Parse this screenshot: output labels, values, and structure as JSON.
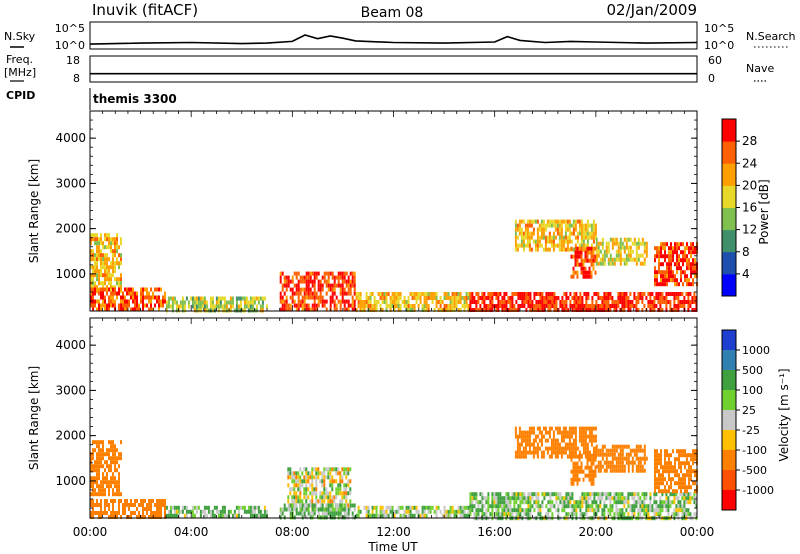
{
  "header": {
    "station": "Inuvik (fitACF)",
    "beam": "Beam 08",
    "date": "02/Jan/2009"
  },
  "strips": {
    "nsky_label": "N.Sky",
    "nsky_ticks": [
      "10^5",
      "10^0"
    ],
    "nsearch_label": "N.Search",
    "nsearch_ticks": [
      "10^5",
      "10^0"
    ],
    "freq_label": "Freq.",
    "freq_unit": "[MHz]",
    "freq_ticks": [
      "18",
      "8"
    ],
    "nave_label": "Nave",
    "nave_ticks": [
      "60",
      "0"
    ],
    "cpid_label": "CPID",
    "cpid_value": "themis 3300"
  },
  "axes": {
    "ylabel": "Slant Range [km]",
    "xlabel": "Time UT",
    "x_ticks": [
      "00:00",
      "04:00",
      "08:00",
      "12:00",
      "16:00",
      "20:00",
      "00:00"
    ],
    "y_ticks": [
      "1000",
      "2000",
      "3000",
      "4000"
    ]
  },
  "colorbars": {
    "power": {
      "label": "Power [dB]",
      "ticks": [
        "4",
        "8",
        "12",
        "16",
        "20",
        "24",
        "28"
      ],
      "colors": [
        "#0000ff",
        "#1f4fae",
        "#3f8f6a",
        "#7fc050",
        "#e8d82a",
        "#ffa000",
        "#ff6000",
        "#ff0000"
      ]
    },
    "velocity": {
      "label": "Velocity [m s⁻¹]",
      "ticks": [
        "1000",
        "500",
        "100",
        "25",
        "-25",
        "-100",
        "-500",
        "-1000"
      ],
      "colors": [
        "#1f3fd0",
        "#2f7fb0",
        "#3fa040",
        "#70d030",
        "#c8c8c8",
        "#ffc000",
        "#ff8000",
        "#ff5000",
        "#ff0000"
      ]
    }
  },
  "chart_data": [
    {
      "type": "line",
      "name": "N.Sky",
      "x_hours": [
        0,
        2,
        4,
        6,
        7,
        8,
        8.5,
        9,
        9.5,
        10,
        10.5,
        12,
        14,
        16,
        16.5,
        17,
        18,
        19,
        20,
        22,
        24
      ],
      "log10_values": [
        0.9,
        1.1,
        1.2,
        1.0,
        1.1,
        1.4,
        2.6,
        1.9,
        2.4,
        2.0,
        1.5,
        1.2,
        1.1,
        1.3,
        2.3,
        1.6,
        1.2,
        1.4,
        1.3,
        1.1,
        1.2
      ],
      "ylim": [
        0,
        5
      ]
    },
    {
      "type": "line",
      "name": "Freq.",
      "x_hours": [
        0,
        24
      ],
      "values": [
        11.2,
        11.2
      ],
      "ylim": [
        8,
        18
      ]
    },
    {
      "type": "heatmap",
      "name": "Power",
      "x_range_hours": [
        0,
        24
      ],
      "y_range_km": [
        180,
        4600
      ],
      "unit": "dB",
      "regions": [
        {
          "t0": 0.0,
          "t1": 1.2,
          "r0": 600,
          "r1": 1900,
          "value": 20
        },
        {
          "t0": 0.0,
          "t1": 3.0,
          "r0": 200,
          "r1": 700,
          "value": 26
        },
        {
          "t0": 3.0,
          "t1": 7.0,
          "r0": 200,
          "r1": 500,
          "value": 16
        },
        {
          "t0": 7.5,
          "t1": 10.5,
          "r0": 200,
          "r1": 1050,
          "value": 28
        },
        {
          "t0": 10.5,
          "t1": 15.0,
          "r0": 200,
          "r1": 600,
          "value": 20
        },
        {
          "t0": 15.0,
          "t1": 24.0,
          "r0": 200,
          "r1": 600,
          "value": 29
        },
        {
          "t0": 16.8,
          "t1": 20.0,
          "r0": 1500,
          "r1": 2200,
          "value": 20
        },
        {
          "t0": 19.0,
          "t1": 20.0,
          "r0": 900,
          "r1": 1600,
          "value": 27
        },
        {
          "t0": 20.0,
          "t1": 22.0,
          "r0": 1200,
          "r1": 1800,
          "value": 18
        },
        {
          "t0": 22.3,
          "t1": 24.0,
          "r0": 800,
          "r1": 1700,
          "value": 28
        }
      ]
    },
    {
      "type": "heatmap",
      "name": "Velocity",
      "x_range_hours": [
        0,
        24
      ],
      "y_range_km": [
        180,
        4600
      ],
      "unit": "m/s",
      "regions": [
        {
          "t0": 0.0,
          "t1": 1.2,
          "r0": 700,
          "r1": 1900,
          "value": -200
        },
        {
          "t0": 0.0,
          "t1": 3.0,
          "r0": 200,
          "r1": 600,
          "value": -150
        },
        {
          "t0": 3.0,
          "t1": 7.0,
          "r0": 200,
          "r1": 450,
          "value": 50
        },
        {
          "t0": 7.8,
          "t1": 10.3,
          "r0": 400,
          "r1": 1300,
          "value": 0
        },
        {
          "t0": 7.5,
          "t1": 10.5,
          "r0": 200,
          "r1": 500,
          "value": 60
        },
        {
          "t0": 10.5,
          "t1": 15.0,
          "r0": 200,
          "r1": 450,
          "value": 30
        },
        {
          "t0": 15.0,
          "t1": 24.0,
          "r0": 200,
          "r1": 750,
          "value": 40
        },
        {
          "t0": 16.8,
          "t1": 20.0,
          "r0": 1500,
          "r1": 2200,
          "value": -150
        },
        {
          "t0": 19.0,
          "t1": 20.0,
          "r0": 900,
          "r1": 1600,
          "value": -200
        },
        {
          "t0": 20.0,
          "t1": 22.0,
          "r0": 1200,
          "r1": 1800,
          "value": -150
        },
        {
          "t0": 22.3,
          "t1": 24.0,
          "r0": 800,
          "r1": 1700,
          "value": -200
        }
      ]
    }
  ]
}
